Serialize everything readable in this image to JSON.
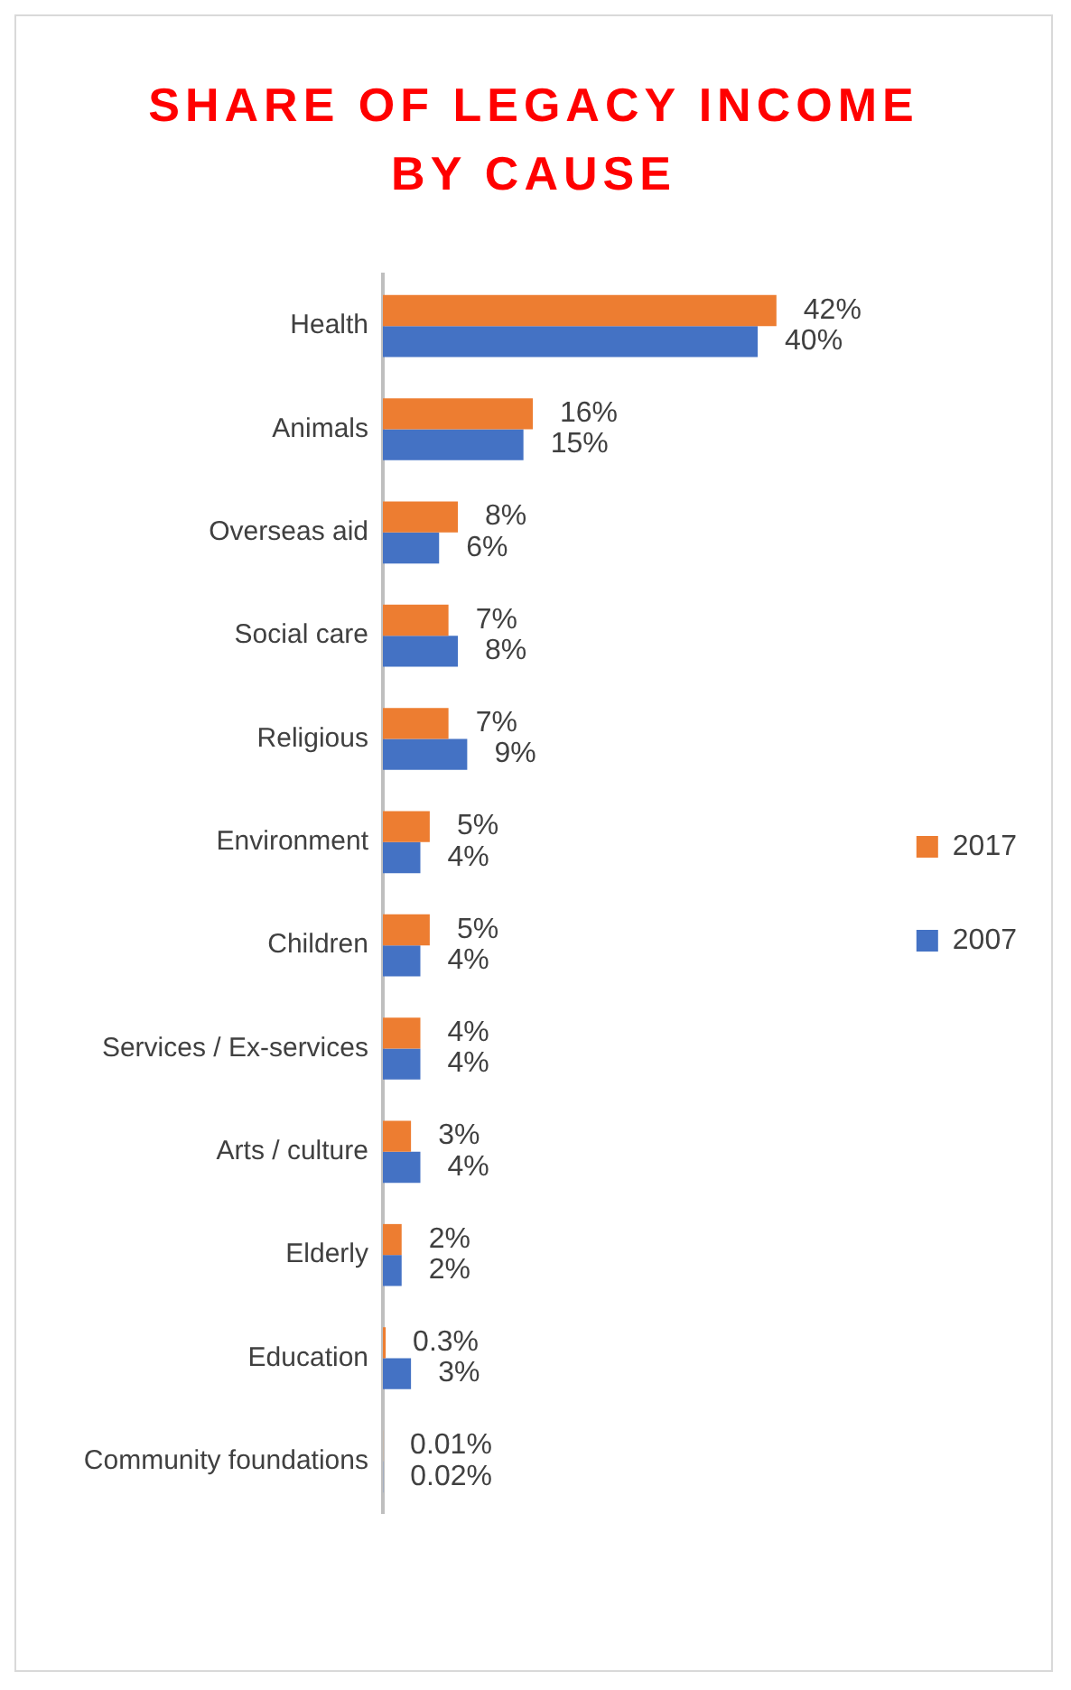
{
  "chart_data": {
    "type": "bar",
    "orientation": "horizontal",
    "title": "SHARE OF LEGACY INCOME BY CAUSE",
    "categories": [
      "Health",
      "Animals",
      "Overseas aid",
      "Social care",
      "Religious",
      "Environment",
      "Children",
      "Services / Ex-services",
      "Arts / culture",
      "Elderly",
      "Education",
      "Community foundations"
    ],
    "series": [
      {
        "name": "2017",
        "color": "#ed7d31",
        "values": [
          42,
          16,
          8,
          7,
          7,
          5,
          5,
          4,
          3,
          2,
          0.3,
          0.01
        ],
        "value_labels": [
          "42%",
          "16%",
          "8%",
          "7%",
          "7%",
          "5%",
          "5%",
          "4%",
          "3%",
          "2%",
          "0.3%",
          "0.01%"
        ]
      },
      {
        "name": "2007",
        "color": "#4472c4",
        "values": [
          40,
          15,
          6,
          8,
          9,
          4,
          4,
          4,
          4,
          2,
          3,
          0.02
        ],
        "value_labels": [
          "40%",
          "15%",
          "6%",
          "8%",
          "9%",
          "4%",
          "4%",
          "4%",
          "4%",
          "2%",
          "3%",
          "0.02%"
        ]
      }
    ],
    "tick_labels": "y",
    "grid": false,
    "legend": "right"
  }
}
